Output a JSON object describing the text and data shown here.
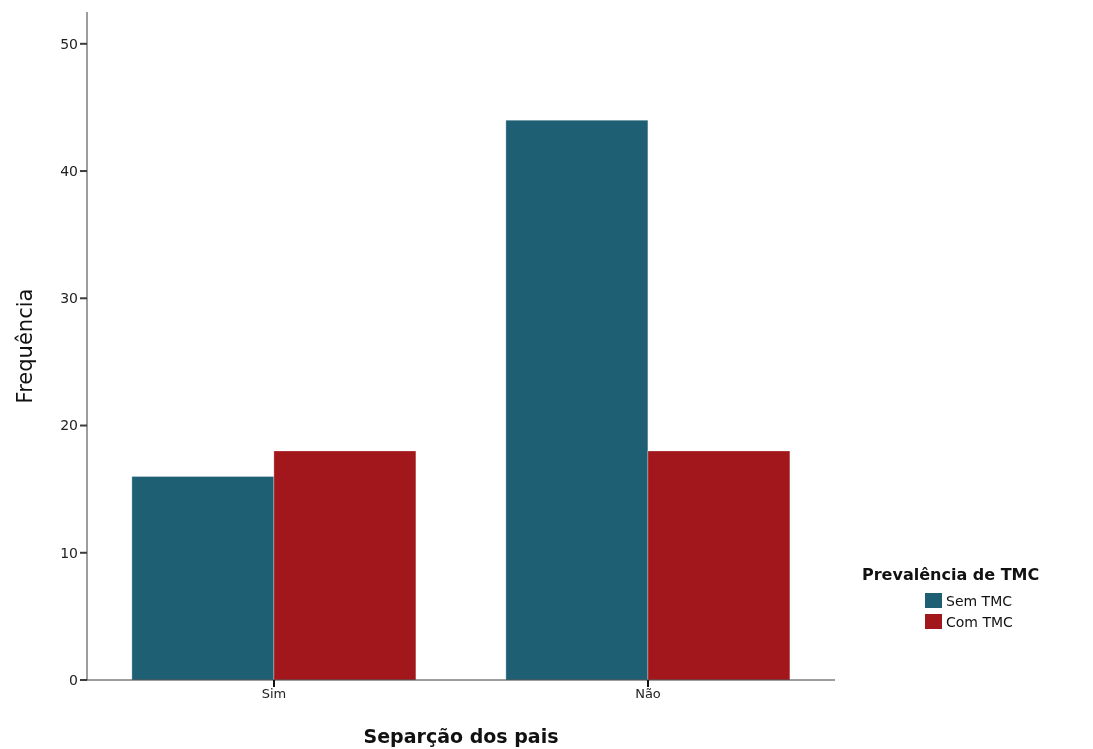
{
  "chart_data": {
    "type": "bar",
    "xlabel": "Separção dos pais",
    "ylabel": "Frequência",
    "legend_title": "Prevalência de TMC",
    "categories": [
      "Sim",
      "Não"
    ],
    "series": [
      {
        "name": "Sem TMC",
        "color": "#1e5f74",
        "values": [
          16,
          44
        ]
      },
      {
        "name": "Com TMC",
        "color": "#a1171b",
        "values": [
          18,
          18
        ]
      }
    ],
    "ylim": [
      0,
      52.5
    ],
    "yticks": [
      0,
      10,
      20,
      30,
      40,
      50
    ],
    "legend": "right"
  }
}
